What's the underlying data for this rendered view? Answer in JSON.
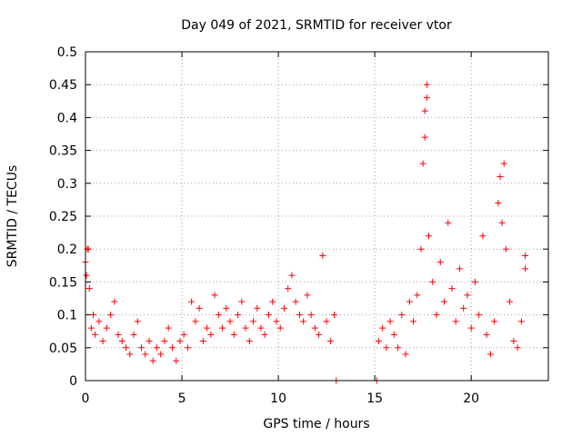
{
  "chart_data": {
    "type": "scatter",
    "title": "Day 049 of 2021, SRMTID for receiver vtor",
    "xlabel": "GPS time / hours",
    "ylabel": "SRMTID / TECUs",
    "xlim": [
      0,
      24
    ],
    "ylim": [
      0,
      0.5
    ],
    "xticks": [
      0,
      5,
      10,
      15,
      20
    ],
    "yticks": [
      0,
      0.05,
      0.1,
      0.15,
      0.2,
      0.25,
      0.3,
      0.35,
      0.4,
      0.45,
      0.5
    ],
    "grid": true,
    "marker": "+",
    "series": [
      {
        "name": "vtor",
        "color": "#ff0000",
        "points": [
          [
            0.0,
            0.18
          ],
          [
            0.05,
            0.16
          ],
          [
            0.1,
            0.2
          ],
          [
            0.15,
            0.2
          ],
          [
            0.2,
            0.14
          ],
          [
            0.3,
            0.08
          ],
          [
            0.4,
            0.1
          ],
          [
            0.5,
            0.07
          ],
          [
            0.7,
            0.09
          ],
          [
            0.9,
            0.06
          ],
          [
            1.1,
            0.08
          ],
          [
            1.3,
            0.1
          ],
          [
            1.5,
            0.12
          ],
          [
            1.7,
            0.07
          ],
          [
            1.9,
            0.06
          ],
          [
            2.1,
            0.05
          ],
          [
            2.3,
            0.04
          ],
          [
            2.5,
            0.07
          ],
          [
            2.7,
            0.09
          ],
          [
            2.9,
            0.05
          ],
          [
            3.1,
            0.04
          ],
          [
            3.3,
            0.06
          ],
          [
            3.5,
            0.03
          ],
          [
            3.7,
            0.05
          ],
          [
            3.9,
            0.04
          ],
          [
            4.1,
            0.06
          ],
          [
            4.3,
            0.08
          ],
          [
            4.5,
            0.05
          ],
          [
            4.7,
            0.03
          ],
          [
            4.9,
            0.06
          ],
          [
            5.1,
            0.07
          ],
          [
            5.3,
            0.05
          ],
          [
            5.5,
            0.12
          ],
          [
            5.7,
            0.09
          ],
          [
            5.9,
            0.11
          ],
          [
            6.1,
            0.06
          ],
          [
            6.3,
            0.08
          ],
          [
            6.5,
            0.07
          ],
          [
            6.7,
            0.13
          ],
          [
            6.9,
            0.1
          ],
          [
            7.1,
            0.08
          ],
          [
            7.3,
            0.11
          ],
          [
            7.5,
            0.09
          ],
          [
            7.7,
            0.07
          ],
          [
            7.9,
            0.1
          ],
          [
            8.1,
            0.12
          ],
          [
            8.3,
            0.08
          ],
          [
            8.5,
            0.06
          ],
          [
            8.7,
            0.09
          ],
          [
            8.9,
            0.11
          ],
          [
            9.1,
            0.08
          ],
          [
            9.3,
            0.07
          ],
          [
            9.5,
            0.1
          ],
          [
            9.7,
            0.12
          ],
          [
            9.9,
            0.09
          ],
          [
            10.1,
            0.08
          ],
          [
            10.3,
            0.11
          ],
          [
            10.5,
            0.14
          ],
          [
            10.7,
            0.16
          ],
          [
            10.9,
            0.12
          ],
          [
            11.1,
            0.1
          ],
          [
            11.3,
            0.09
          ],
          [
            11.5,
            0.13
          ],
          [
            11.7,
            0.1
          ],
          [
            11.9,
            0.08
          ],
          [
            12.1,
            0.07
          ],
          [
            12.3,
            0.19
          ],
          [
            12.5,
            0.09
          ],
          [
            12.7,
            0.06
          ],
          [
            12.9,
            0.1
          ],
          [
            13.0,
            0.0
          ],
          [
            15.1,
            0.0
          ],
          [
            15.2,
            0.06
          ],
          [
            15.4,
            0.08
          ],
          [
            15.6,
            0.05
          ],
          [
            15.8,
            0.09
          ],
          [
            16.0,
            0.07
          ],
          [
            16.2,
            0.05
          ],
          [
            16.4,
            0.1
          ],
          [
            16.6,
            0.04
          ],
          [
            16.8,
            0.12
          ],
          [
            17.0,
            0.09
          ],
          [
            17.2,
            0.13
          ],
          [
            17.4,
            0.2
          ],
          [
            17.5,
            0.33
          ],
          [
            17.6,
            0.37
          ],
          [
            17.6,
            0.41
          ],
          [
            17.7,
            0.43
          ],
          [
            17.7,
            0.45
          ],
          [
            17.8,
            0.22
          ],
          [
            18.0,
            0.15
          ],
          [
            18.2,
            0.1
          ],
          [
            18.4,
            0.18
          ],
          [
            18.6,
            0.12
          ],
          [
            18.8,
            0.24
          ],
          [
            19.0,
            0.14
          ],
          [
            19.2,
            0.09
          ],
          [
            19.4,
            0.17
          ],
          [
            19.6,
            0.11
          ],
          [
            19.8,
            0.13
          ],
          [
            20.0,
            0.08
          ],
          [
            20.2,
            0.15
          ],
          [
            20.4,
            0.1
          ],
          [
            20.6,
            0.22
          ],
          [
            20.8,
            0.07
          ],
          [
            21.0,
            0.04
          ],
          [
            21.2,
            0.09
          ],
          [
            21.4,
            0.27
          ],
          [
            21.5,
            0.31
          ],
          [
            21.6,
            0.24
          ],
          [
            21.7,
            0.33
          ],
          [
            21.8,
            0.2
          ],
          [
            22.0,
            0.12
          ],
          [
            22.2,
            0.06
          ],
          [
            22.4,
            0.05
          ],
          [
            22.6,
            0.09
          ],
          [
            22.8,
            0.19
          ],
          [
            22.8,
            0.17
          ]
        ]
      }
    ]
  }
}
